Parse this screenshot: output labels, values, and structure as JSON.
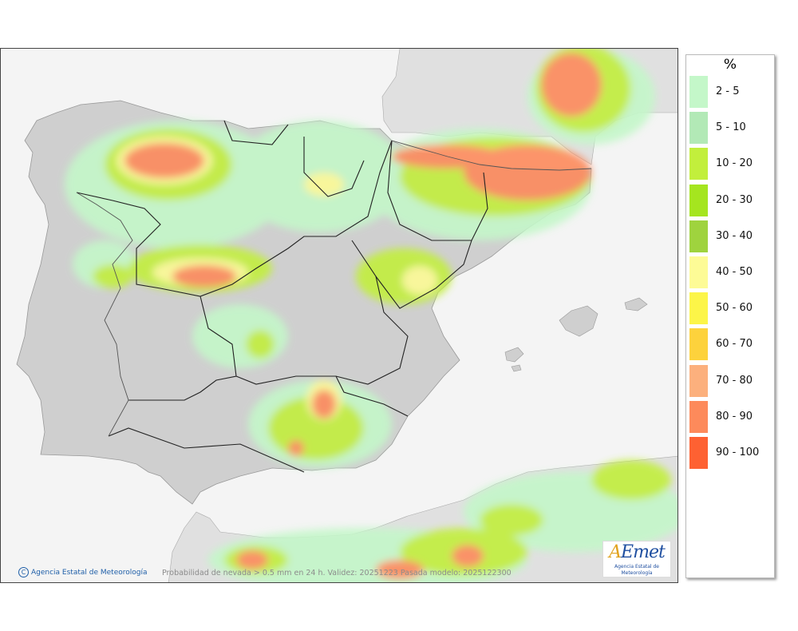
{
  "map": {
    "caption": "Probabilidad de nevada > 0.5 mm en 24 h. Validez: 20251223 Pasada modelo: 2025122300",
    "credit": "Agencia Estatal de Meteorología",
    "logo_text": "AEmet",
    "logo_subtext": "Agencia Estatal de Meteorología"
  },
  "legend": {
    "unit": "%",
    "items": [
      {
        "label": "2 - 5",
        "color": "#c4f7c9"
      },
      {
        "label": "5 - 10",
        "color": "#b2e9b6"
      },
      {
        "label": "10 - 20",
        "color": "#c2ef3c"
      },
      {
        "label": "20 - 30",
        "color": "#a5e51f"
      },
      {
        "label": "30 - 40",
        "color": "#9fd33e"
      },
      {
        "label": "40 - 50",
        "color": "#fdfb96"
      },
      {
        "label": "50 - 60",
        "color": "#fcf548"
      },
      {
        "label": "60 - 70",
        "color": "#fdd23c"
      },
      {
        "label": "70 - 80",
        "color": "#fcb07d"
      },
      {
        "label": "80 - 90",
        "color": "#fd8a5b"
      },
      {
        "label": "90 - 100",
        "color": "#fe6132"
      }
    ]
  }
}
